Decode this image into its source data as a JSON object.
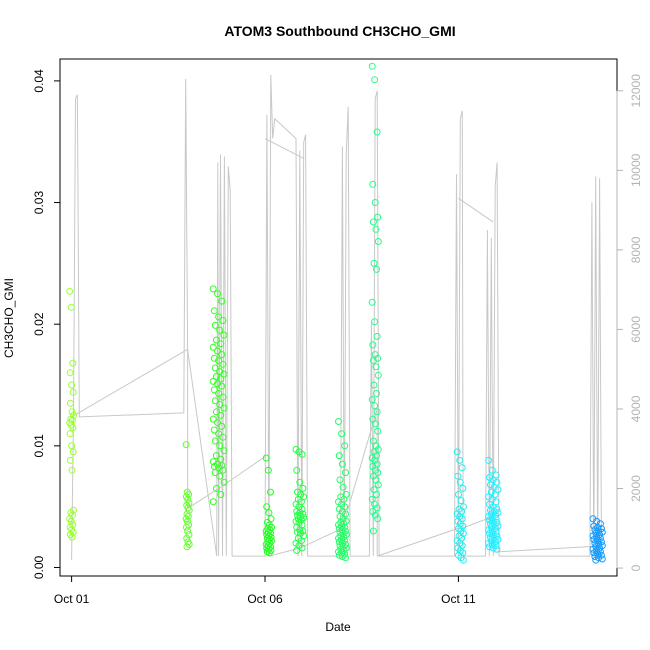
{
  "chart_data": {
    "type": "scatter",
    "title": "ATOM3 Southbound CH3CHO_GMI",
    "xlabel": "Date",
    "ylabel": "CH3CHO_GMI",
    "x_ticks": [
      {
        "label": "Oct 01",
        "value": 1
      },
      {
        "label": "Oct 06",
        "value": 6
      },
      {
        "label": "Oct 11",
        "value": 11
      }
    ],
    "y_ticks": [
      0.0,
      0.01,
      0.02,
      0.03,
      0.04
    ],
    "y_tick_labels": [
      "0.00",
      "0.01",
      "0.02",
      "0.03",
      "0.04"
    ],
    "y2_ticks": [
      0,
      2000,
      4000,
      6000,
      8000,
      10000,
      12000
    ],
    "y2_tick_labels": [
      "0",
      "2000",
      "4000",
      "6000",
      "8000",
      "10000",
      "12000"
    ],
    "xlim": [
      0.7,
      15.1
    ],
    "ylim": [
      -0.0007,
      0.0418
    ],
    "y2lim": [
      -200,
      12800
    ],
    "grid": false,
    "legend": "none",
    "point_style": "open-circle",
    "secondary_series_color": "#c8c8c8",
    "clusters": [
      {
        "x": 1.0,
        "color": "#99ff33",
        "spread": 0.05,
        "values": [
          0.0227,
          0.0214,
          0.0168,
          0.016,
          0.015,
          0.0144,
          0.0135,
          0.0128,
          0.0125,
          0.0122,
          0.0121,
          0.0119,
          0.0117,
          0.0115,
          0.011,
          0.01,
          0.0095,
          0.0088,
          0.008,
          0.0047,
          0.0045,
          0.0043,
          0.004,
          0.0038,
          0.0035,
          0.0033,
          0.0031,
          0.0029,
          0.0027,
          0.0025
        ]
      },
      {
        "x": 4.0,
        "color": "#66ff33",
        "spread": 0.04,
        "values": [
          0.0101,
          0.0062,
          0.006,
          0.0058,
          0.0056,
          0.0053,
          0.0051,
          0.0049,
          0.0047,
          0.0044,
          0.0042,
          0.004,
          0.0038,
          0.0035,
          0.0033,
          0.003,
          0.0027,
          0.0024,
          0.0021,
          0.0019,
          0.0017
        ]
      },
      {
        "x": 4.8,
        "color": "#33ff22",
        "spread": 0.14,
        "values": [
          0.0229,
          0.0225,
          0.0219,
          0.0211,
          0.0206,
          0.0203,
          0.0199,
          0.0195,
          0.0191,
          0.0187,
          0.0184,
          0.0181,
          0.0178,
          0.0175,
          0.0172,
          0.017,
          0.0167,
          0.0164,
          0.0161,
          0.0159,
          0.0157,
          0.0155,
          0.0153,
          0.0151,
          0.0149,
          0.0146,
          0.0143,
          0.014,
          0.0137,
          0.0134,
          0.0131,
          0.0128,
          0.0125,
          0.0122,
          0.0119,
          0.0116,
          0.0113,
          0.011,
          0.0107,
          0.0104,
          0.01,
          0.0096,
          0.0092,
          0.0089,
          0.0087,
          0.0085,
          0.0084,
          0.0083,
          0.0082,
          0.008,
          0.0078,
          0.0075,
          0.007,
          0.0065,
          0.006,
          0.0054
        ]
      },
      {
        "x": 6.1,
        "color": "#22ff22",
        "spread": 0.07,
        "values": [
          0.009,
          0.008,
          0.0062,
          0.005,
          0.0045,
          0.004,
          0.0037,
          0.0035,
          0.0033,
          0.0032,
          0.0031,
          0.003,
          0.0029,
          0.0028,
          0.0027,
          0.0026,
          0.0025,
          0.0024,
          0.0023,
          0.0022,
          0.0021,
          0.002,
          0.0019,
          0.0018,
          0.0017,
          0.0016,
          0.0015,
          0.0014,
          0.0013,
          0.0012
        ]
      },
      {
        "x": 6.9,
        "color": "#22ff44",
        "spread": 0.1,
        "values": [
          0.0097,
          0.0095,
          0.0093,
          0.008,
          0.007,
          0.0065,
          0.0062,
          0.006,
          0.0058,
          0.0056,
          0.0054,
          0.0052,
          0.005,
          0.0048,
          0.0046,
          0.0045,
          0.0044,
          0.0043,
          0.0042,
          0.0041,
          0.004,
          0.0039,
          0.0038,
          0.0037,
          0.0035,
          0.0033,
          0.0031,
          0.003,
          0.0029,
          0.0028,
          0.0026,
          0.0024,
          0.0022,
          0.002,
          0.0018,
          0.0016,
          0.0014
        ]
      },
      {
        "x": 8.0,
        "color": "#22ff66",
        "spread": 0.1,
        "values": [
          0.012,
          0.011,
          0.01,
          0.0092,
          0.0085,
          0.0078,
          0.0072,
          0.0066,
          0.006,
          0.0058,
          0.0056,
          0.0054,
          0.0052,
          0.005,
          0.0048,
          0.0046,
          0.0044,
          0.0042,
          0.004,
          0.0038,
          0.0037,
          0.0036,
          0.0035,
          0.0034,
          0.0033,
          0.0032,
          0.0031,
          0.003,
          0.0029,
          0.0028,
          0.0027,
          0.0026,
          0.0025,
          0.0024,
          0.0023,
          0.0022,
          0.0021,
          0.002,
          0.0019,
          0.0018,
          0.0017,
          0.0016,
          0.0015,
          0.0014,
          0.0013,
          0.0012,
          0.0011,
          0.001,
          0.0009,
          0.0008
        ]
      },
      {
        "x": 8.85,
        "color": "#22ff88",
        "spread": 0.08,
        "values": [
          0.0412,
          0.0401,
          0.0358,
          0.0315,
          0.03,
          0.0288,
          0.0284,
          0.0278,
          0.0268,
          0.025,
          0.0245,
          0.0218,
          0.0202,
          0.019,
          0.0183,
          0.0175,
          0.0172,
          0.017,
          0.0165,
          0.0158,
          0.015,
          0.0143,
          0.0138,
          0.0133,
          0.0128,
          0.0122,
          0.0118,
          0.0112,
          0.0104,
          0.01,
          0.0097,
          0.0095,
          0.0092,
          0.009,
          0.0088,
          0.0085,
          0.0083,
          0.008,
          0.0078,
          0.0075,
          0.0072,
          0.0068,
          0.0064,
          0.006,
          0.0056,
          0.0052,
          0.0049,
          0.0046,
          0.0043,
          0.004,
          0.003
        ]
      },
      {
        "x": 11.05,
        "color": "#22eeee",
        "spread": 0.08,
        "values": [
          0.0095,
          0.0088,
          0.0082,
          0.0075,
          0.007,
          0.0065,
          0.006,
          0.0055,
          0.005,
          0.0048,
          0.0046,
          0.0044,
          0.0042,
          0.004,
          0.0038,
          0.0036,
          0.0034,
          0.0032,
          0.003,
          0.0028,
          0.0026,
          0.0024,
          0.0022,
          0.002,
          0.0018,
          0.0016,
          0.0014,
          0.0012,
          0.001,
          0.0008,
          0.0006
        ]
      },
      {
        "x": 11.9,
        "color": "#22eeff",
        "spread": 0.12,
        "values": [
          0.0088,
          0.008,
          0.0076,
          0.0074,
          0.0072,
          0.007,
          0.0068,
          0.0066,
          0.0064,
          0.0062,
          0.006,
          0.0058,
          0.0056,
          0.0054,
          0.0052,
          0.005,
          0.0048,
          0.0047,
          0.0046,
          0.0045,
          0.0044,
          0.0043,
          0.0042,
          0.0041,
          0.004,
          0.0039,
          0.0038,
          0.0037,
          0.0036,
          0.0035,
          0.0034,
          0.0033,
          0.0032,
          0.0031,
          0.003,
          0.0029,
          0.0028,
          0.0027,
          0.0026,
          0.0025,
          0.0024,
          0.0023,
          0.0022,
          0.0021,
          0.002,
          0.0019,
          0.0018,
          0.0017,
          0.0016,
          0.0015
        ]
      },
      {
        "x": 14.6,
        "color": "#1199ff",
        "spread": 0.12,
        "values": [
          0.004,
          0.0038,
          0.0036,
          0.0034,
          0.0033,
          0.0032,
          0.0031,
          0.003,
          0.0029,
          0.0028,
          0.0027,
          0.0026,
          0.0025,
          0.0024,
          0.0023,
          0.0022,
          0.0021,
          0.002,
          0.0019,
          0.0018,
          0.0017,
          0.0016,
          0.0015,
          0.0014,
          0.0013,
          0.0012,
          0.0011,
          0.001,
          0.0009,
          0.0008,
          0.0007,
          0.0006
        ]
      }
    ],
    "secondary_series": {
      "name": "",
      "y_axis": "right",
      "points": [
        [
          1.0,
          200
        ],
        [
          1.05,
          3800
        ],
        [
          1.1,
          11800
        ],
        [
          1.15,
          11900
        ],
        [
          1.2,
          3800
        ],
        [
          3.9,
          3900
        ],
        [
          3.95,
          12300
        ],
        [
          4.0,
          5500
        ],
        [
          4.75,
          300
        ],
        [
          4.78,
          10200
        ],
        [
          4.8,
          300
        ],
        [
          4.85,
          10400
        ],
        [
          4.9,
          300
        ],
        [
          4.95,
          10350
        ],
        [
          5.0,
          300
        ],
        [
          5.05,
          10100
        ],
        [
          5.1,
          9500
        ],
        [
          5.15,
          300
        ],
        [
          6.0,
          300
        ],
        [
          6.05,
          11400
        ],
        [
          6.1,
          300
        ],
        [
          6.15,
          12400
        ],
        [
          6.2,
          10800
        ],
        [
          6.25,
          11300
        ],
        [
          6.8,
          10800
        ],
        [
          6.85,
          300
        ],
        [
          6.9,
          10500
        ],
        [
          6.95,
          300
        ],
        [
          7.0,
          10700
        ],
        [
          7.05,
          10900
        ],
        [
          7.1,
          300
        ],
        [
          7.95,
          300
        ],
        [
          8.0,
          10600
        ],
        [
          8.05,
          300
        ],
        [
          8.1,
          10400
        ],
        [
          8.15,
          11600
        ],
        [
          8.2,
          300
        ],
        [
          8.7,
          300
        ],
        [
          8.75,
          6200
        ],
        [
          8.8,
          300
        ],
        [
          8.85,
          11800
        ],
        [
          8.9,
          12000
        ],
        [
          8.95,
          300
        ],
        [
          10.9,
          300
        ],
        [
          10.95,
          9900
        ],
        [
          11.0,
          300
        ],
        [
          11.05,
          11300
        ],
        [
          11.1,
          11500
        ],
        [
          11.12,
          300
        ],
        [
          11.7,
          300
        ],
        [
          11.75,
          8500
        ],
        [
          11.8,
          300
        ],
        [
          11.85,
          8300
        ],
        [
          11.9,
          300
        ],
        [
          11.95,
          9600
        ],
        [
          12.0,
          10200
        ],
        [
          12.05,
          300
        ],
        [
          14.4,
          300
        ],
        [
          14.45,
          9200
        ],
        [
          14.5,
          300
        ],
        [
          14.55,
          9850
        ],
        [
          14.6,
          300
        ],
        [
          14.65,
          9800
        ],
        [
          14.7,
          300
        ]
      ],
      "connectors": [
        [
          [
            1.0,
            3800
          ],
          [
            4.0,
            5500
          ]
        ],
        [
          [
            4.0,
            5500
          ],
          [
            4.0,
            1500
          ]
        ],
        [
          [
            4.0,
            1500
          ],
          [
            4.8,
            2000
          ]
        ],
        [
          [
            4.8,
            2000
          ],
          [
            6.0,
            2800
          ]
        ],
        [
          [
            6.0,
            10800
          ],
          [
            7.0,
            10300
          ]
        ],
        [
          [
            6.1,
            300
          ],
          [
            6.9,
            500
          ]
        ],
        [
          [
            6.9,
            500
          ],
          [
            8.0,
            1000
          ]
        ],
        [
          [
            8.0,
            1000
          ],
          [
            8.9,
            4000
          ]
        ],
        [
          [
            8.9,
            4000
          ],
          [
            8.9,
            300
          ]
        ],
        [
          [
            8.9,
            300
          ],
          [
            11.0,
            1000
          ]
        ],
        [
          [
            11.0,
            9300
          ],
          [
            11.9,
            8700
          ]
        ],
        [
          [
            11.1,
            1000
          ],
          [
            11.9,
            1300
          ]
        ],
        [
          [
            11.9,
            400
          ],
          [
            14.6,
            550
          ]
        ]
      ]
    }
  }
}
